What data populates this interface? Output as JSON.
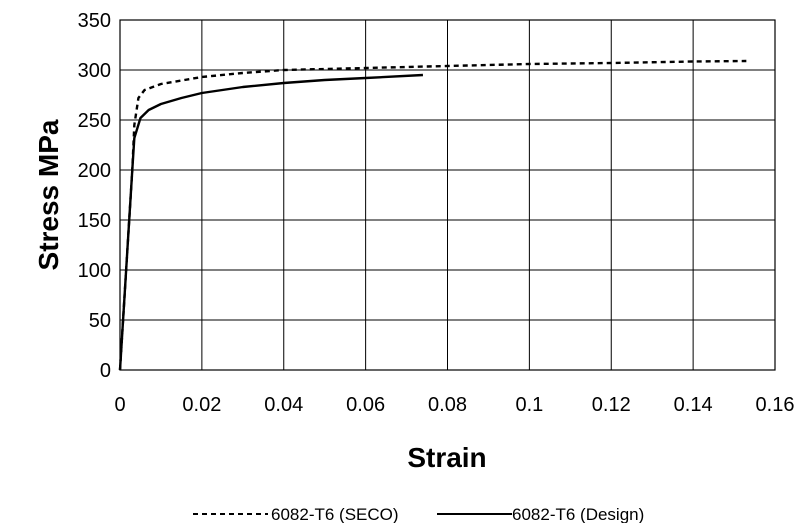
{
  "chart_data": {
    "type": "line",
    "title": "",
    "xlabel": "Strain",
    "ylabel": "Stress MPa",
    "xlim": [
      0,
      0.16
    ],
    "ylim": [
      0,
      350
    ],
    "x_ticks": [
      0,
      0.02,
      0.04,
      0.06,
      0.08,
      0.1,
      0.12,
      0.14,
      0.16
    ],
    "x_tick_labels": [
      "0",
      "0.02",
      "0.04",
      "0.06",
      "0.08",
      "0.1",
      "0.12",
      "0.14",
      "0.16"
    ],
    "y_ticks": [
      0,
      50,
      100,
      150,
      200,
      250,
      300,
      350
    ],
    "y_tick_labels": [
      "0",
      "50",
      "100",
      "150",
      "200",
      "250",
      "300",
      "350"
    ],
    "grid": true,
    "legend_position": "bottom",
    "series": [
      {
        "name": "6082-T6 (SECO)",
        "line_style": "dotted",
        "color": "#000000",
        "points": [
          [
            0,
            0
          ],
          [
            0.0015,
            100
          ],
          [
            0.003,
            200
          ],
          [
            0.0035,
            245
          ],
          [
            0.0045,
            272
          ],
          [
            0.006,
            280
          ],
          [
            0.01,
            286
          ],
          [
            0.02,
            293
          ],
          [
            0.03,
            297
          ],
          [
            0.04,
            300
          ],
          [
            0.06,
            302
          ],
          [
            0.08,
            304
          ],
          [
            0.1,
            306
          ],
          [
            0.12,
            307
          ],
          [
            0.14,
            308.5
          ],
          [
            0.153,
            309
          ]
        ]
      },
      {
        "name": "6082-T6 (Design)",
        "line_style": "solid",
        "color": "#000000",
        "points": [
          [
            0,
            0
          ],
          [
            0.0015,
            100
          ],
          [
            0.003,
            200
          ],
          [
            0.0035,
            232
          ],
          [
            0.005,
            252
          ],
          [
            0.007,
            260
          ],
          [
            0.01,
            266
          ],
          [
            0.015,
            272
          ],
          [
            0.02,
            277
          ],
          [
            0.03,
            283
          ],
          [
            0.04,
            287
          ],
          [
            0.05,
            290
          ],
          [
            0.06,
            292
          ],
          [
            0.074,
            295
          ]
        ]
      }
    ]
  }
}
